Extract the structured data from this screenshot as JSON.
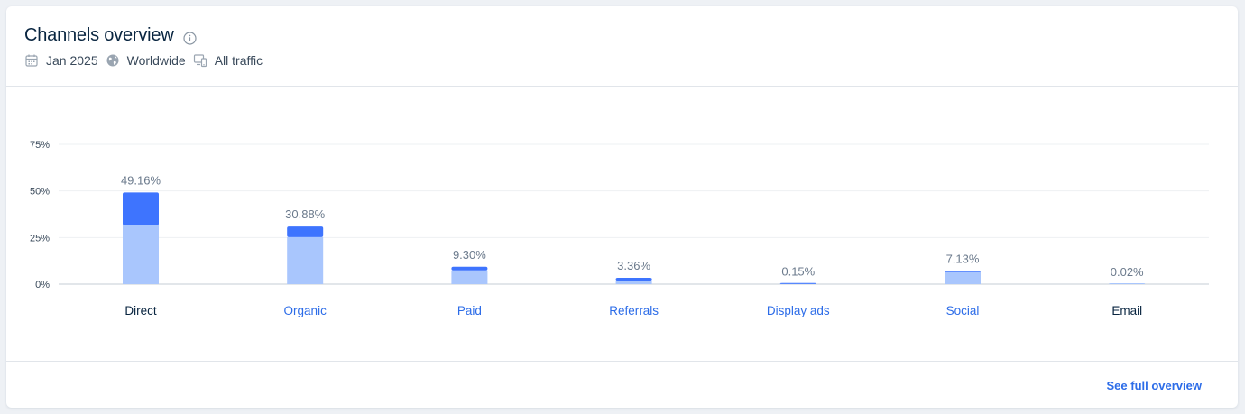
{
  "header": {
    "title": "Channels overview",
    "meta": [
      {
        "icon": "calendar-icon",
        "label": "Jan 2025"
      },
      {
        "icon": "globe-icon",
        "label": "Worldwide"
      },
      {
        "icon": "devices-icon",
        "label": "All traffic"
      }
    ]
  },
  "footer": {
    "link_label": "See full overview"
  },
  "colors": {
    "bar_dark": "#3e74fe",
    "bar_light": "#a9c6fd",
    "link": "#2c6ce8",
    "axis_text": "#3a4a5b",
    "label_text": "#6b7a8c"
  },
  "chart_data": {
    "type": "bar",
    "stacked": true,
    "ylim": [
      0,
      75
    ],
    "yticks": [
      "0%",
      "25%",
      "50%",
      "75%"
    ],
    "ytick_values": [
      0,
      25,
      50,
      75
    ],
    "categories": [
      "Direct",
      "Organic",
      "Paid",
      "Referrals",
      "Display ads",
      "Social",
      "Email"
    ],
    "category_links": [
      false,
      true,
      true,
      true,
      true,
      true,
      false
    ],
    "totals": [
      49.16,
      30.88,
      9.3,
      3.36,
      0.15,
      7.13,
      0.02
    ],
    "total_labels": [
      "49.16%",
      "30.88%",
      "9.30%",
      "3.36%",
      "0.15%",
      "7.13%",
      "0.02%"
    ],
    "series": [
      {
        "values": [
          31.5,
          25.2,
          7.4,
          1.9,
          0.1,
          6.4,
          0.02
        ],
        "color": "#a9c6fd"
      },
      {
        "values": [
          17.66,
          5.68,
          1.9,
          1.46,
          0.05,
          0.73,
          0.0
        ],
        "color": "#3e74fe"
      }
    ],
    "grid": true
  }
}
